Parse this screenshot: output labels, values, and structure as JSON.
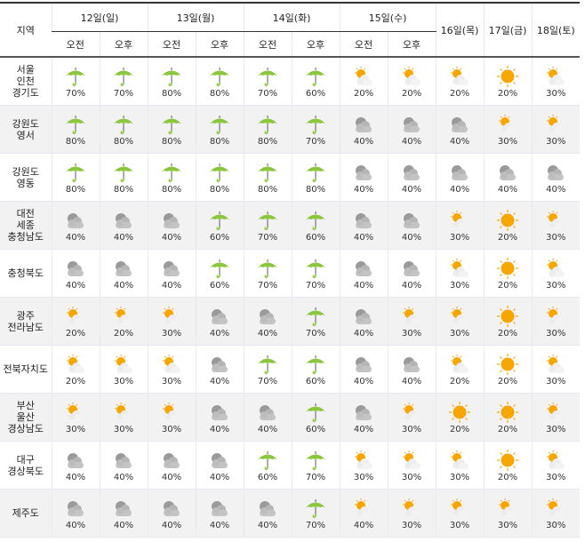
{
  "header": {
    "region_label": "지역",
    "days": [
      {
        "label": "12일(일)",
        "split": true
      },
      {
        "label": "13일(월)",
        "split": true
      },
      {
        "label": "14일(화)",
        "split": true
      },
      {
        "label": "15일(수)",
        "split": true
      },
      {
        "label": "16일(목)",
        "split": false
      },
      {
        "label": "17일(금)",
        "split": false
      },
      {
        "label": "18일(토)",
        "split": false
      }
    ],
    "am_label": "오전",
    "pm_label": "오후"
  },
  "icon_types": {
    "R": "rain-umbrella",
    "C": "cloudy",
    "P": "partly-cloudy",
    "S": "sunny"
  },
  "colors": {
    "rain": "#8cc63f",
    "sun": "#f7a600",
    "cloud": "#aaaaaa",
    "row_alt": "#f2f2f2"
  },
  "rows": [
    {
      "region": [
        "서울",
        "인천",
        "경기도"
      ],
      "cells": [
        [
          "R",
          "70%"
        ],
        [
          "R",
          "70%"
        ],
        [
          "R",
          "80%"
        ],
        [
          "R",
          "80%"
        ],
        [
          "R",
          "70%"
        ],
        [
          "R",
          "60%"
        ],
        [
          "P",
          "20%"
        ],
        [
          "P",
          "20%"
        ],
        [
          "P",
          "20%"
        ],
        [
          "S",
          "20%"
        ],
        [
          "P",
          "30%"
        ]
      ]
    },
    {
      "region": [
        "강원도",
        "영서"
      ],
      "cells": [
        [
          "R",
          "80%"
        ],
        [
          "R",
          "80%"
        ],
        [
          "R",
          "80%"
        ],
        [
          "R",
          "80%"
        ],
        [
          "R",
          "80%"
        ],
        [
          "R",
          "70%"
        ],
        [
          "C",
          "40%"
        ],
        [
          "C",
          "40%"
        ],
        [
          "C",
          "40%"
        ],
        [
          "P",
          "30%"
        ],
        [
          "P",
          "30%"
        ]
      ]
    },
    {
      "region": [
        "강원도",
        "영동"
      ],
      "cells": [
        [
          "R",
          "80%"
        ],
        [
          "R",
          "80%"
        ],
        [
          "R",
          "80%"
        ],
        [
          "R",
          "80%"
        ],
        [
          "R",
          "80%"
        ],
        [
          "R",
          "80%"
        ],
        [
          "C",
          "40%"
        ],
        [
          "C",
          "40%"
        ],
        [
          "C",
          "40%"
        ],
        [
          "C",
          "40%"
        ],
        [
          "C",
          "40%"
        ]
      ]
    },
    {
      "region": [
        "대전",
        "세종",
        "충청남도"
      ],
      "cells": [
        [
          "C",
          "40%"
        ],
        [
          "C",
          "40%"
        ],
        [
          "C",
          "40%"
        ],
        [
          "R",
          "60%"
        ],
        [
          "R",
          "70%"
        ],
        [
          "R",
          "60%"
        ],
        [
          "C",
          "40%"
        ],
        [
          "C",
          "40%"
        ],
        [
          "P",
          "30%"
        ],
        [
          "S",
          "20%"
        ],
        [
          "P",
          "30%"
        ]
      ]
    },
    {
      "region": [
        "충청북도"
      ],
      "cells": [
        [
          "C",
          "40%"
        ],
        [
          "C",
          "40%"
        ],
        [
          "C",
          "40%"
        ],
        [
          "R",
          "60%"
        ],
        [
          "R",
          "70%"
        ],
        [
          "R",
          "70%"
        ],
        [
          "C",
          "40%"
        ],
        [
          "C",
          "40%"
        ],
        [
          "P",
          "30%"
        ],
        [
          "S",
          "20%"
        ],
        [
          "P",
          "30%"
        ]
      ]
    },
    {
      "region": [
        "광주",
        "전라남도"
      ],
      "cells": [
        [
          "P",
          "20%"
        ],
        [
          "P",
          "20%"
        ],
        [
          "P",
          "30%"
        ],
        [
          "C",
          "40%"
        ],
        [
          "C",
          "40%"
        ],
        [
          "R",
          "70%"
        ],
        [
          "C",
          "40%"
        ],
        [
          "P",
          "30%"
        ],
        [
          "P",
          "30%"
        ],
        [
          "S",
          "20%"
        ],
        [
          "P",
          "30%"
        ]
      ]
    },
    {
      "region": [
        "전북자치도"
      ],
      "cells": [
        [
          "P",
          "20%"
        ],
        [
          "P",
          "30%"
        ],
        [
          "P",
          "30%"
        ],
        [
          "C",
          "40%"
        ],
        [
          "R",
          "70%"
        ],
        [
          "R",
          "60%"
        ],
        [
          "C",
          "40%"
        ],
        [
          "C",
          "40%"
        ],
        [
          "P",
          "20%"
        ],
        [
          "S",
          "20%"
        ],
        [
          "P",
          "30%"
        ]
      ]
    },
    {
      "region": [
        "부산",
        "울산",
        "경상남도"
      ],
      "cells": [
        [
          "P",
          "30%"
        ],
        [
          "P",
          "30%"
        ],
        [
          "P",
          "30%"
        ],
        [
          "C",
          "40%"
        ],
        [
          "C",
          "40%"
        ],
        [
          "R",
          "60%"
        ],
        [
          "C",
          "40%"
        ],
        [
          "P",
          "30%"
        ],
        [
          "S",
          "20%"
        ],
        [
          "S",
          "20%"
        ],
        [
          "P",
          "30%"
        ]
      ]
    },
    {
      "region": [
        "대구",
        "경상북도"
      ],
      "cells": [
        [
          "C",
          "40%"
        ],
        [
          "C",
          "40%"
        ],
        [
          "C",
          "40%"
        ],
        [
          "C",
          "40%"
        ],
        [
          "R",
          "60%"
        ],
        [
          "R",
          "70%"
        ],
        [
          "P",
          "30%"
        ],
        [
          "P",
          "30%"
        ],
        [
          "P",
          "30%"
        ],
        [
          "S",
          "20%"
        ],
        [
          "P",
          "30%"
        ]
      ]
    },
    {
      "region": [
        "제주도"
      ],
      "cells": [
        [
          "C",
          "40%"
        ],
        [
          "C",
          "40%"
        ],
        [
          "C",
          "40%"
        ],
        [
          "C",
          "40%"
        ],
        [
          "C",
          "40%"
        ],
        [
          "R",
          "70%"
        ],
        [
          "P",
          "40%"
        ],
        [
          "P",
          "30%"
        ],
        [
          "P",
          "30%"
        ],
        [
          "P",
          "30%"
        ],
        [
          "P",
          "30%"
        ]
      ]
    }
  ]
}
